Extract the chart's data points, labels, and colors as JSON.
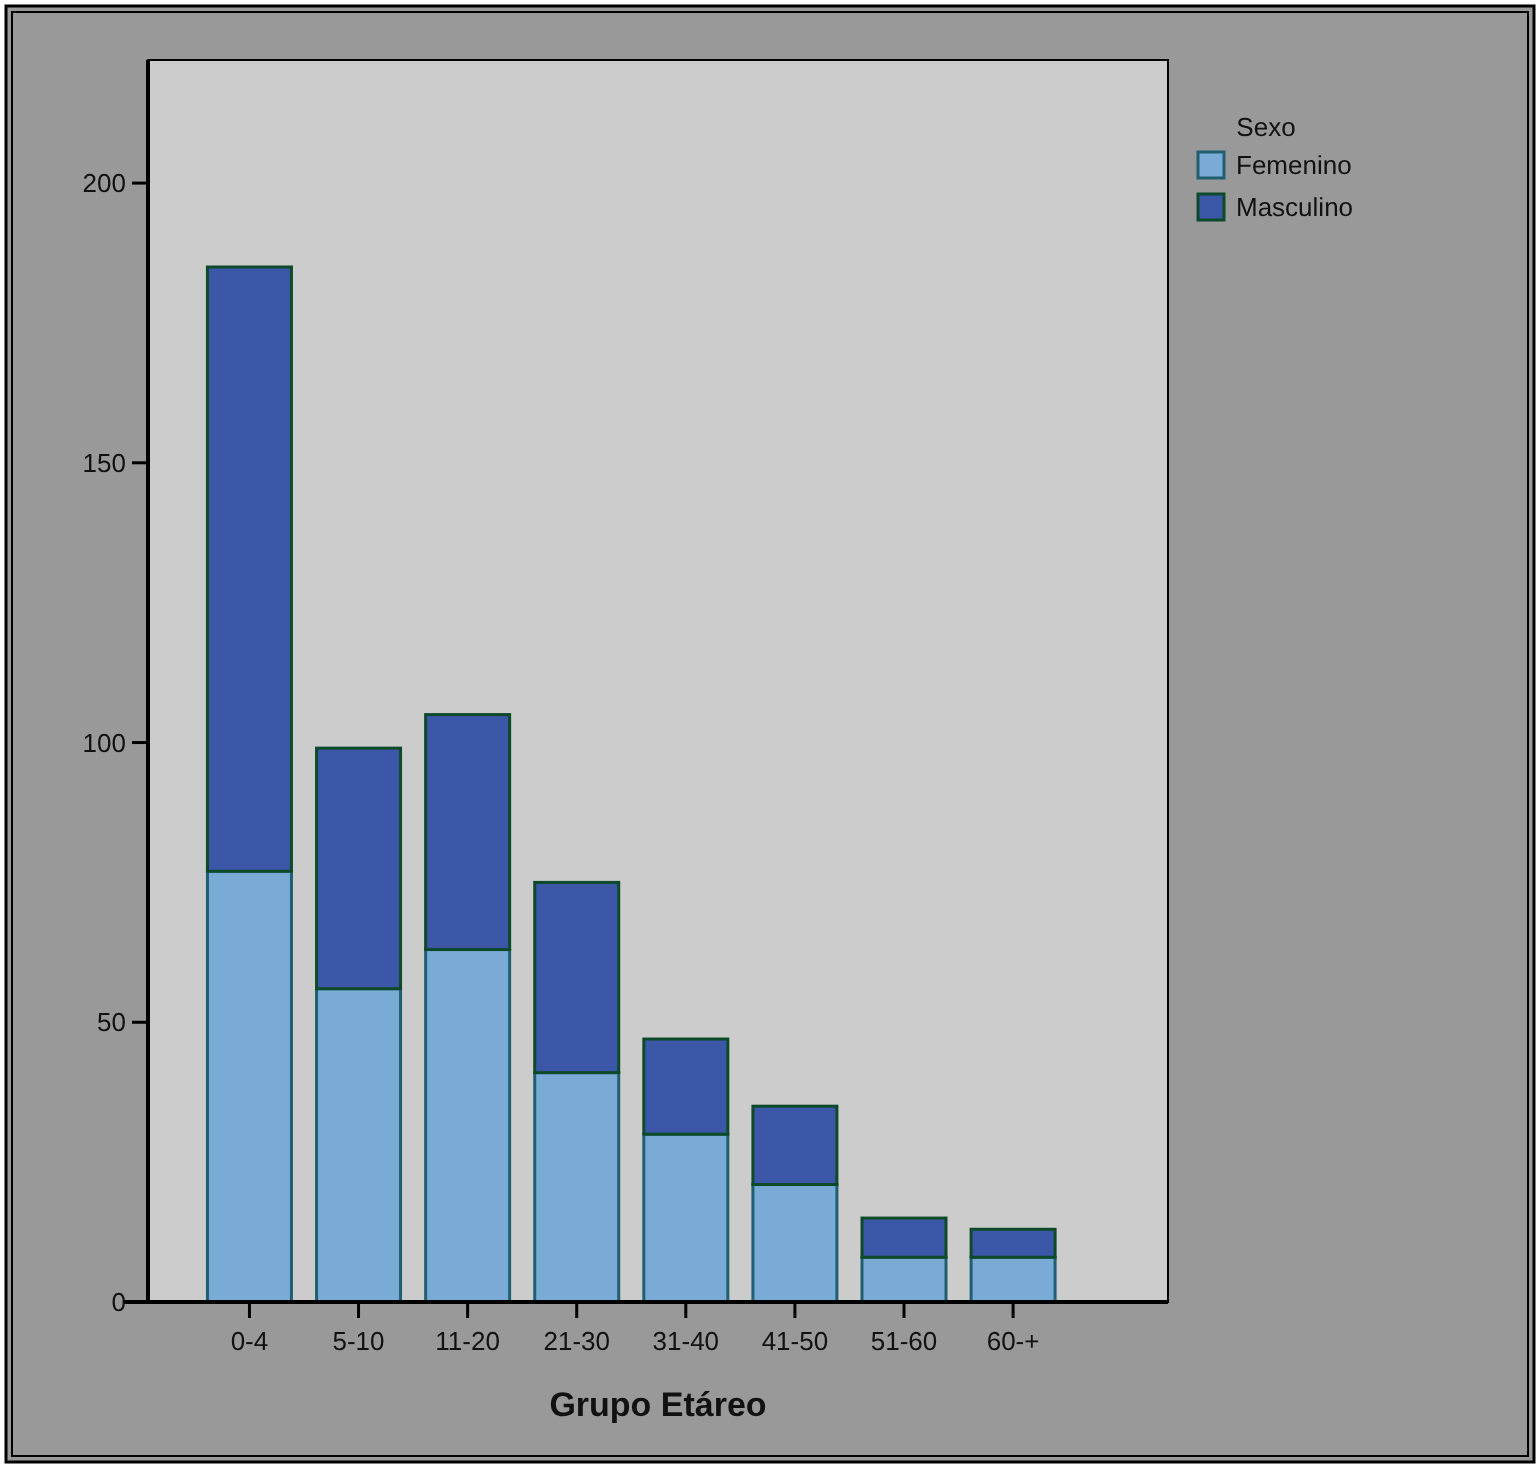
{
  "chart_data": {
    "type": "bar",
    "xlabel": "Grupo Etáreo",
    "legend_title": "Sexo",
    "categories": [
      "0-4",
      "5-10",
      "11-20",
      "21-30",
      "31-40",
      "41-50",
      "51-60",
      "60-+"
    ],
    "series": [
      {
        "name": "Femenino",
        "color": "#7aaad6",
        "values": [
          77,
          56,
          63,
          41,
          30,
          21,
          8,
          8
        ]
      },
      {
        "name": "Masculino",
        "color": "#3d57a8",
        "values": [
          108,
          43,
          42,
          34,
          17,
          14,
          7,
          5
        ]
      }
    ],
    "stacked": true,
    "ylim": [
      0,
      222
    ],
    "yticks": [
      0,
      50,
      100,
      150,
      200
    ],
    "grid": false,
    "legend": "top right"
  }
}
